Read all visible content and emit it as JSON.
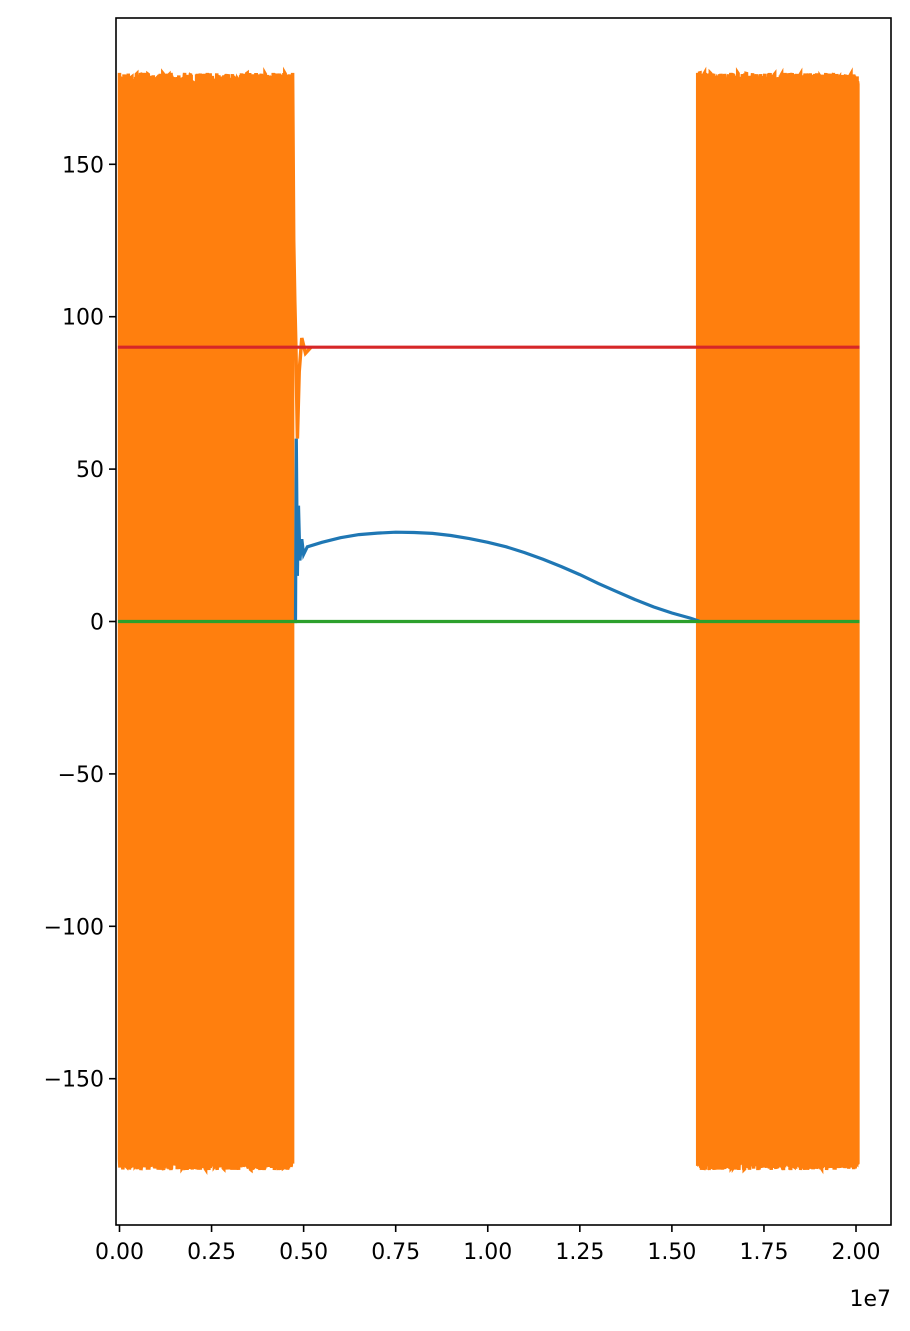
{
  "chart_data": {
    "type": "line",
    "title": "",
    "xlabel": "",
    "ylabel": "",
    "x_offset_label": "1e7",
    "xlim": [
      -95000,
      20950000
    ],
    "ylim": [
      -198,
      198
    ],
    "x_ticks": [
      0,
      2500000,
      5000000,
      7500000,
      10000000,
      12500000,
      15000000,
      17500000,
      20000000
    ],
    "x_tick_labels": [
      "0.00",
      "0.25",
      "0.50",
      "0.75",
      "1.00",
      "1.25",
      "1.50",
      "1.75",
      "2.00"
    ],
    "y_ticks": [
      -150,
      -100,
      -50,
      0,
      50,
      100,
      150
    ],
    "y_tick_labels": [
      "−150",
      "−100",
      "−50",
      "0",
      "50",
      "100",
      "150"
    ],
    "grid": false,
    "series": [
      {
        "color": "#ff7f0e",
        "kind": "oscillating_band",
        "segments": [
          {
            "x_start": 0,
            "x_end": 4700000,
            "y_min": -180,
            "y_max": 180
          },
          {
            "x_start": 15700000,
            "x_end": 20050000,
            "y_min": -180,
            "y_max": 180
          }
        ],
        "tail_points": [
          [
            4700000,
            180
          ],
          [
            4730000,
            125
          ],
          [
            4760000,
            105
          ],
          [
            4790000,
            90
          ],
          [
            4830000,
            60
          ],
          [
            4880000,
            82
          ],
          [
            4950000,
            93
          ],
          [
            5050000,
            88
          ],
          [
            5200000,
            90
          ]
        ]
      },
      {
        "color": "#1f77b4",
        "kind": "line",
        "points": [
          [
            4780000,
            0
          ],
          [
            4800000,
            60
          ],
          [
            4830000,
            15
          ],
          [
            4860000,
            38
          ],
          [
            4900000,
            20
          ],
          [
            4950000,
            27
          ],
          [
            5000000,
            22
          ],
          [
            5100000,
            24.5
          ],
          [
            5500000,
            26
          ],
          [
            6000000,
            27.5
          ],
          [
            6500000,
            28.5
          ],
          [
            7000000,
            29
          ],
          [
            7500000,
            29.3
          ],
          [
            8000000,
            29.2
          ],
          [
            8500000,
            28.9
          ],
          [
            9000000,
            28.2
          ],
          [
            9500000,
            27.2
          ],
          [
            10000000,
            26
          ],
          [
            10500000,
            24.5
          ],
          [
            11000000,
            22.6
          ],
          [
            11500000,
            20.4
          ],
          [
            12000000,
            18
          ],
          [
            12500000,
            15.4
          ],
          [
            13000000,
            12.5
          ],
          [
            13500000,
            9.8
          ],
          [
            14000000,
            7.2
          ],
          [
            14500000,
            4.8
          ],
          [
            15000000,
            2.8
          ],
          [
            15500000,
            1.1
          ],
          [
            15700000,
            0.3
          ]
        ]
      },
      {
        "color": "#2ca02c",
        "kind": "line",
        "points": [
          [
            0,
            0
          ],
          [
            20050000,
            0
          ]
        ]
      },
      {
        "color": "#d62728",
        "kind": "line",
        "points": [
          [
            0,
            90
          ],
          [
            20050000,
            90
          ]
        ]
      }
    ]
  }
}
